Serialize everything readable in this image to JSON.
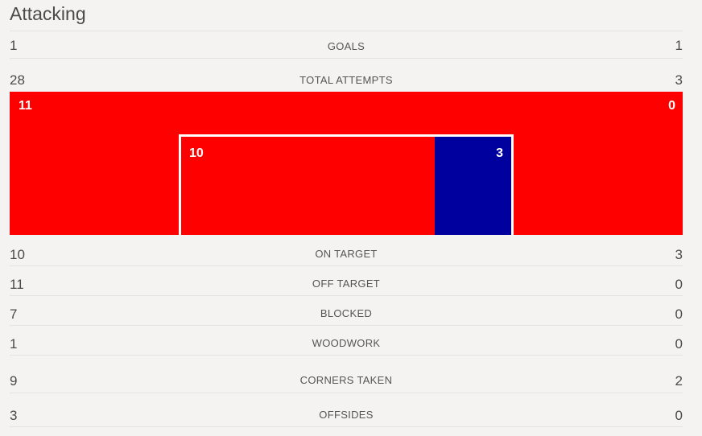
{
  "section_title": "Attacking",
  "colors": {
    "home": "#ff0000",
    "away": "#00009f",
    "background": "#f4f3f2"
  },
  "goals": {
    "label": "GOALS",
    "home": "1",
    "away": "1"
  },
  "total_attempts": {
    "label": "TOTAL ATTEMPTS",
    "home": "28",
    "away": "3"
  },
  "attempt_map": {
    "off_target_home": "11",
    "off_target_away": "0",
    "on_target_home": "10",
    "on_target_away": "3"
  },
  "stats": [
    {
      "label": "ON TARGET",
      "home": "10",
      "away": "3"
    },
    {
      "label": "OFF TARGET",
      "home": "11",
      "away": "0"
    },
    {
      "label": "BLOCKED",
      "home": "7",
      "away": "0"
    },
    {
      "label": "WOODWORK",
      "home": "1",
      "away": "0"
    },
    {
      "label": "CORNERS TAKEN",
      "home": "9",
      "away": "2"
    },
    {
      "label": "OFFSIDES",
      "home": "3",
      "away": "0"
    }
  ]
}
